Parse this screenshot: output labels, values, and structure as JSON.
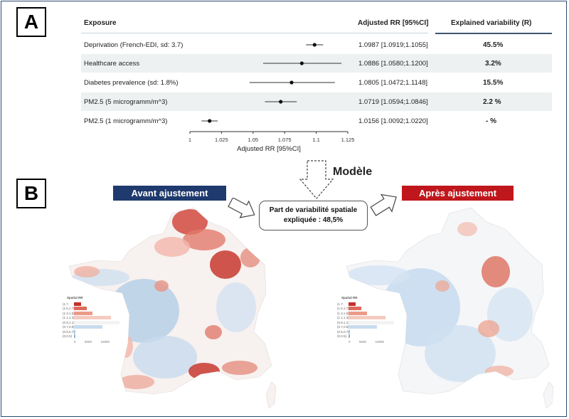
{
  "panel_a": {
    "label": "A",
    "headers": {
      "exposure": "Exposure",
      "rr": "Adjusted RR [95%CI]",
      "variability": "Explained variability (R)"
    },
    "rows": [
      {
        "exposure": "Deprivation (French-EDI, sd: 3.7)",
        "rr_text": "1.0987 [1.0919;1.1055]",
        "variability": "45.5%"
      },
      {
        "exposure": "Healthcare access",
        "rr_text": "1.0886 [1.0580;1.1200]",
        "variability": "3.2%"
      },
      {
        "exposure": "Diabetes prevalence (sd: 1.8%)",
        "rr_text": "1.0805 [1.0472;1.1148]",
        "variability": "15.5%"
      },
      {
        "exposure": "PM2.5 (5 microgramm/m^3)",
        "rr_text": "1.0719 [1.0594;1.0846]",
        "variability": "2.2 %"
      },
      {
        "exposure": "PM2.5 (1 microgramm/m^3)",
        "rr_text": "1.0156 [1.0092;1.0220]",
        "variability": "- %"
      }
    ]
  },
  "panel_b": {
    "label": "B",
    "modele_label": "Modèle",
    "before_label": "Avant ajustement",
    "after_label": "Après ajustement",
    "center_line1": "Part de variabilité spatiale",
    "center_line2": "expliquée : 48,5%",
    "legend_title": "Spatial RR",
    "legend_items": [
      "(1.7,",
      "(1.5,1.7]",
      "(1.3,1.5]",
      "(1.1,1.3]",
      "(0.9,1.1]",
      "(0.7,0.9]",
      "(0.5,0.7]",
      "(0,0.5]"
    ],
    "legend_axis": [
      "0",
      "5000",
      "10000"
    ],
    "colors": {
      "before_banner": "#1f3a6e",
      "after_banner": "#c0171c",
      "high_rr": "#c5302b",
      "low_rr": "#a9c8e3"
    }
  },
  "chart_data": {
    "type": "forest",
    "xlabel": "Adjusted RR [95%CI]",
    "xlim": [
      1,
      1.125
    ],
    "xticks": [
      "1",
      "1.025",
      "1.05",
      "1.075",
      "1.1",
      "1.125"
    ],
    "series": [
      {
        "exposure": "Deprivation (French-EDI, sd: 3.7)",
        "rr": 1.0987,
        "lo": 1.0919,
        "hi": 1.1055
      },
      {
        "exposure": "Healthcare access",
        "rr": 1.0886,
        "lo": 1.058,
        "hi": 1.12
      },
      {
        "exposure": "Diabetes prevalence (sd: 1.8%)",
        "rr": 1.0805,
        "lo": 1.0472,
        "hi": 1.1148
      },
      {
        "exposure": "PM2.5 (5 microgramm/m^3)",
        "rr": 1.0719,
        "lo": 1.0594,
        "hi": 1.0846
      },
      {
        "exposure": "PM2.5 (1 microgramm/m^3)",
        "rr": 1.0156,
        "lo": 1.0092,
        "hi": 1.022
      }
    ]
  }
}
